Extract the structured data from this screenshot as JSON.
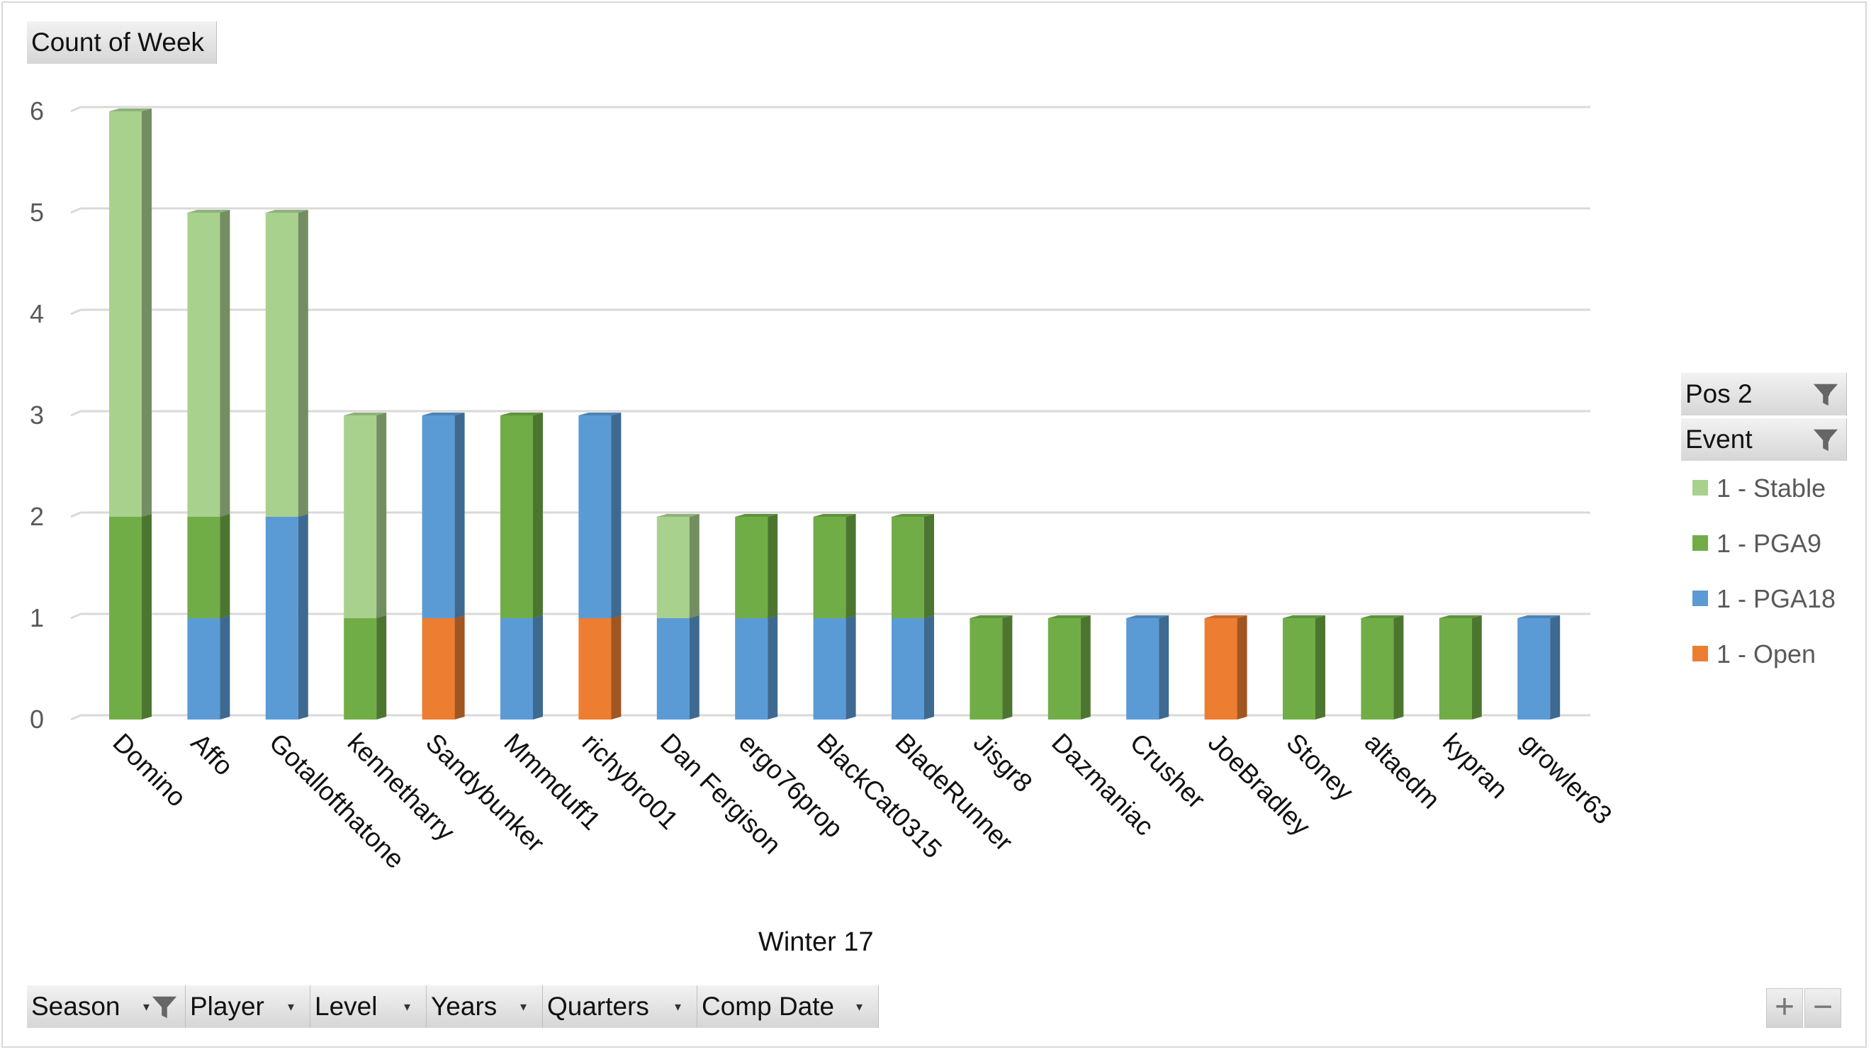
{
  "value_field": "Count of Week",
  "axis_field": "Winter 17",
  "filter_fields": [
    {
      "label": "Season",
      "filtered": true
    },
    {
      "label": "Player",
      "filtered": false
    },
    {
      "label": "Level",
      "filtered": false
    },
    {
      "label": "Years",
      "filtered": false
    },
    {
      "label": "Quarters",
      "filtered": false
    },
    {
      "label": "Comp Date",
      "filtered": false
    }
  ],
  "legend_fields": [
    {
      "label": "Pos 2",
      "filtered": true
    },
    {
      "label": "Event",
      "filtered": true
    }
  ],
  "zoom": {
    "plus": "+",
    "minus": "−"
  },
  "colors": {
    "stable": "#a9d18e",
    "pga9": "#70ad47",
    "pga18": "#5b9bd5",
    "open": "#ed7d31"
  },
  "chart_data": {
    "type": "bar",
    "stacked": true,
    "title": "",
    "xlabel": "Winter 17",
    "ylabel": "",
    "ylim": [
      0,
      6
    ],
    "yticks": [
      0,
      1,
      2,
      3,
      4,
      5,
      6
    ],
    "grid": true,
    "legend_position": "right",
    "categories": [
      "Domino",
      "Affo",
      "Gotallofthatone",
      "kennetharry",
      "Sandybunker",
      "Mmmduff1",
      "richybro01",
      "Dan Fergison",
      "ergo76prop",
      "BlackCat0315",
      "BladeRunner",
      "Jisgr8",
      "Dazmaniac",
      "Crusher",
      "JoeBradley",
      "Stoney",
      "altaedm",
      "kypran",
      "growler63"
    ],
    "series": [
      {
        "name": "1 - Open",
        "color": "#ed7d31",
        "values": [
          0,
          0,
          0,
          0,
          1,
          0,
          1,
          0,
          0,
          0,
          0,
          0,
          0,
          0,
          1,
          0,
          0,
          0,
          0
        ]
      },
      {
        "name": "1 - PGA18",
        "color": "#5b9bd5",
        "values": [
          0,
          1,
          2,
          0,
          2,
          1,
          2,
          1,
          1,
          1,
          1,
          0,
          0,
          1,
          0,
          0,
          0,
          0,
          1
        ]
      },
      {
        "name": "1 - PGA9",
        "color": "#70ad47",
        "values": [
          2,
          1,
          0,
          1,
          0,
          2,
          0,
          0,
          1,
          1,
          1,
          1,
          1,
          0,
          0,
          1,
          1,
          1,
          0
        ]
      },
      {
        "name": "1 - Stable",
        "color": "#a9d18e",
        "values": [
          4,
          3,
          3,
          2,
          0,
          0,
          0,
          1,
          0,
          0,
          0,
          0,
          0,
          0,
          0,
          0,
          0,
          0,
          0
        ]
      }
    ],
    "legend_order": [
      "1 - Stable",
      "1 - PGA9",
      "1 - PGA18",
      "1 - Open"
    ]
  }
}
